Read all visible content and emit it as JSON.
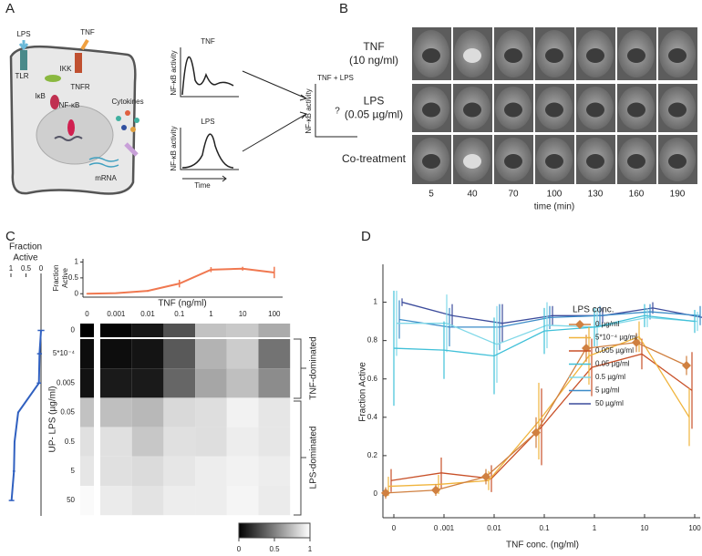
{
  "panel_a": {
    "label": "A",
    "cell_labels": {
      "lps": "LPS",
      "tnf": "TNF",
      "tlr": "TLR",
      "tnfr": "TNFR",
      "ikk": "IKK",
      "ikb": "IκB",
      "nfkb": "NF-κB",
      "mrna": "mRNA",
      "cytokines": "Cytokines"
    },
    "plots": {
      "tnf_title": "TNF",
      "lps_title": "LPS",
      "y_label": "NF-κB activity",
      "x_label": "Time",
      "combined_title": "TNF + LPS",
      "question": "?"
    }
  },
  "panel_b": {
    "label": "B",
    "rows": [
      {
        "name": "TNF",
        "dose": "(10 ng/ml)"
      },
      {
        "name": "LPS",
        "dose": "(0.05 µg/ml)"
      },
      {
        "name": "Co-treatment"
      }
    ],
    "times": [
      5,
      40,
      70,
      100,
      130,
      160,
      190
    ],
    "x_label": "time (min)"
  },
  "panel_c": {
    "label": "C",
    "top": {
      "type": "line",
      "y_label": [
        "Fraction",
        "Active"
      ],
      "x_label": "TNF (ng/ml)",
      "color": "#f07850",
      "values": [
        0,
        0.02,
        0.09,
        0.32,
        0.76,
        0.79,
        0.67
      ],
      "errors": [
        0.02,
        0.02,
        0.03,
        0.12,
        0.08,
        0.06,
        0.18
      ],
      "ylim": [
        -0.05,
        1.1
      ],
      "yticks": [
        0,
        0.5,
        1
      ]
    },
    "heatmap": {
      "type": "heatmap",
      "x_categories": [
        "0",
        "0.001",
        "0.01",
        "0.1",
        "1",
        "10",
        "100"
      ],
      "y_categories": [
        "0",
        "5*10⁻⁴",
        "0.005",
        "0.05",
        "0.5",
        "5",
        "50"
      ],
      "y_label": "UP- LPS (µg/ml)",
      "values": [
        [
          0,
          0.02,
          0.09,
          0.32,
          0.76,
          0.79,
          0.67
        ],
        [
          0.05,
          0.05,
          0.08,
          0.35,
          0.7,
          0.8,
          0.45
        ],
        [
          0.07,
          0.1,
          0.1,
          0.4,
          0.65,
          0.75,
          0.55
        ],
        [
          0.76,
          0.75,
          0.72,
          0.85,
          0.87,
          0.95,
          0.9
        ],
        [
          0.88,
          0.88,
          0.78,
          0.88,
          0.87,
          0.93,
          0.9
        ],
        [
          0.9,
          0.88,
          0.86,
          0.9,
          0.93,
          0.95,
          0.93
        ],
        [
          0.98,
          0.92,
          0.89,
          0.93,
          0.93,
          0.96,
          0.92
        ]
      ],
      "brackets": [
        "TNF-dominated",
        "LPS-dominated"
      ],
      "colorbar": {
        "lim": [
          0,
          1
        ],
        "ticks": [
          0,
          0.5,
          1
        ]
      }
    },
    "left": {
      "type": "line",
      "title": [
        "Fraction",
        "Active"
      ],
      "color": "#3060c0",
      "xlim": [
        1,
        0
      ],
      "xticks": [
        1,
        0.5,
        0
      ],
      "values": [
        0,
        0.05,
        0.07,
        0.76,
        0.88,
        0.9,
        0.98
      ],
      "errors": [
        0.01,
        0.04,
        0.05,
        0.15,
        0.12,
        0.08,
        0.03
      ]
    }
  },
  "panel_d": {
    "label": "D",
    "type": "line",
    "x_categories": [
      "0",
      "0 .001",
      "0.01",
      "0.1",
      "1",
      "10",
      "100"
    ],
    "x_label": "TNF conc. (ng/ml)",
    "y_label": "Fraction Active",
    "legend_title": "LPS conc.",
    "ylim": [
      -0.1,
      1.15
    ],
    "yticks": [
      0,
      0.2,
      0.4,
      0.6,
      0.8,
      1
    ],
    "series": [
      {
        "name": "0 µg/ml",
        "color": "#d08040",
        "marker": "diamond",
        "values": [
          0.005,
          0.02,
          0.09,
          0.32,
          0.76,
          0.79,
          0.67
        ],
        "errors": [
          0.03,
          0.03,
          0.04,
          0.08,
          0.07,
          0.05,
          0.05
        ]
      },
      {
        "name": "5*10⁻⁴ µg/ml",
        "color": "#f0b43c",
        "values": [
          0.04,
          0.05,
          0.07,
          0.38,
          0.72,
          0.82,
          0.4
        ],
        "errors": [
          0.05,
          0.05,
          0.05,
          0.2,
          0.15,
          0.08,
          0.15
        ]
      },
      {
        "name": "0.005 µg/ml",
        "color": "#c85028",
        "values": [
          0.07,
          0.11,
          0.08,
          0.35,
          0.66,
          0.73,
          0.54
        ],
        "errors": [
          0.06,
          0.08,
          0.07,
          0.2,
          0.15,
          0.08,
          0.2
        ]
      },
      {
        "name": "0.05 µg/ml",
        "color": "#40c0d8",
        "values": [
          0.76,
          0.75,
          0.72,
          0.85,
          0.87,
          0.93,
          0.9
        ],
        "errors": [
          0.3,
          0.15,
          0.2,
          0.12,
          0.1,
          0.06,
          0.06
        ]
      },
      {
        "name": "0.5 µg/ml",
        "color": "#80d8e8",
        "values": [
          0.89,
          0.89,
          0.78,
          0.88,
          0.87,
          0.92,
          0.9
        ],
        "errors": [
          0.17,
          0.15,
          0.2,
          0.12,
          0.1,
          0.05,
          0.05
        ]
      },
      {
        "name": "5 µg/ml",
        "color": "#3c8cc8",
        "values": [
          0.91,
          0.87,
          0.87,
          0.92,
          0.93,
          0.95,
          0.93
        ],
        "errors": [
          0.1,
          0.1,
          0.12,
          0.06,
          0.05,
          0.04,
          0.05
        ]
      },
      {
        "name": "50 µg/ml",
        "color": "#3c4c9c",
        "values": [
          1,
          0.93,
          0.89,
          0.93,
          0.93,
          0.97,
          0.92
        ],
        "errors": [
          0.02,
          0.06,
          0.1,
          0.05,
          0.04,
          0.03,
          0.05
        ]
      }
    ]
  }
}
